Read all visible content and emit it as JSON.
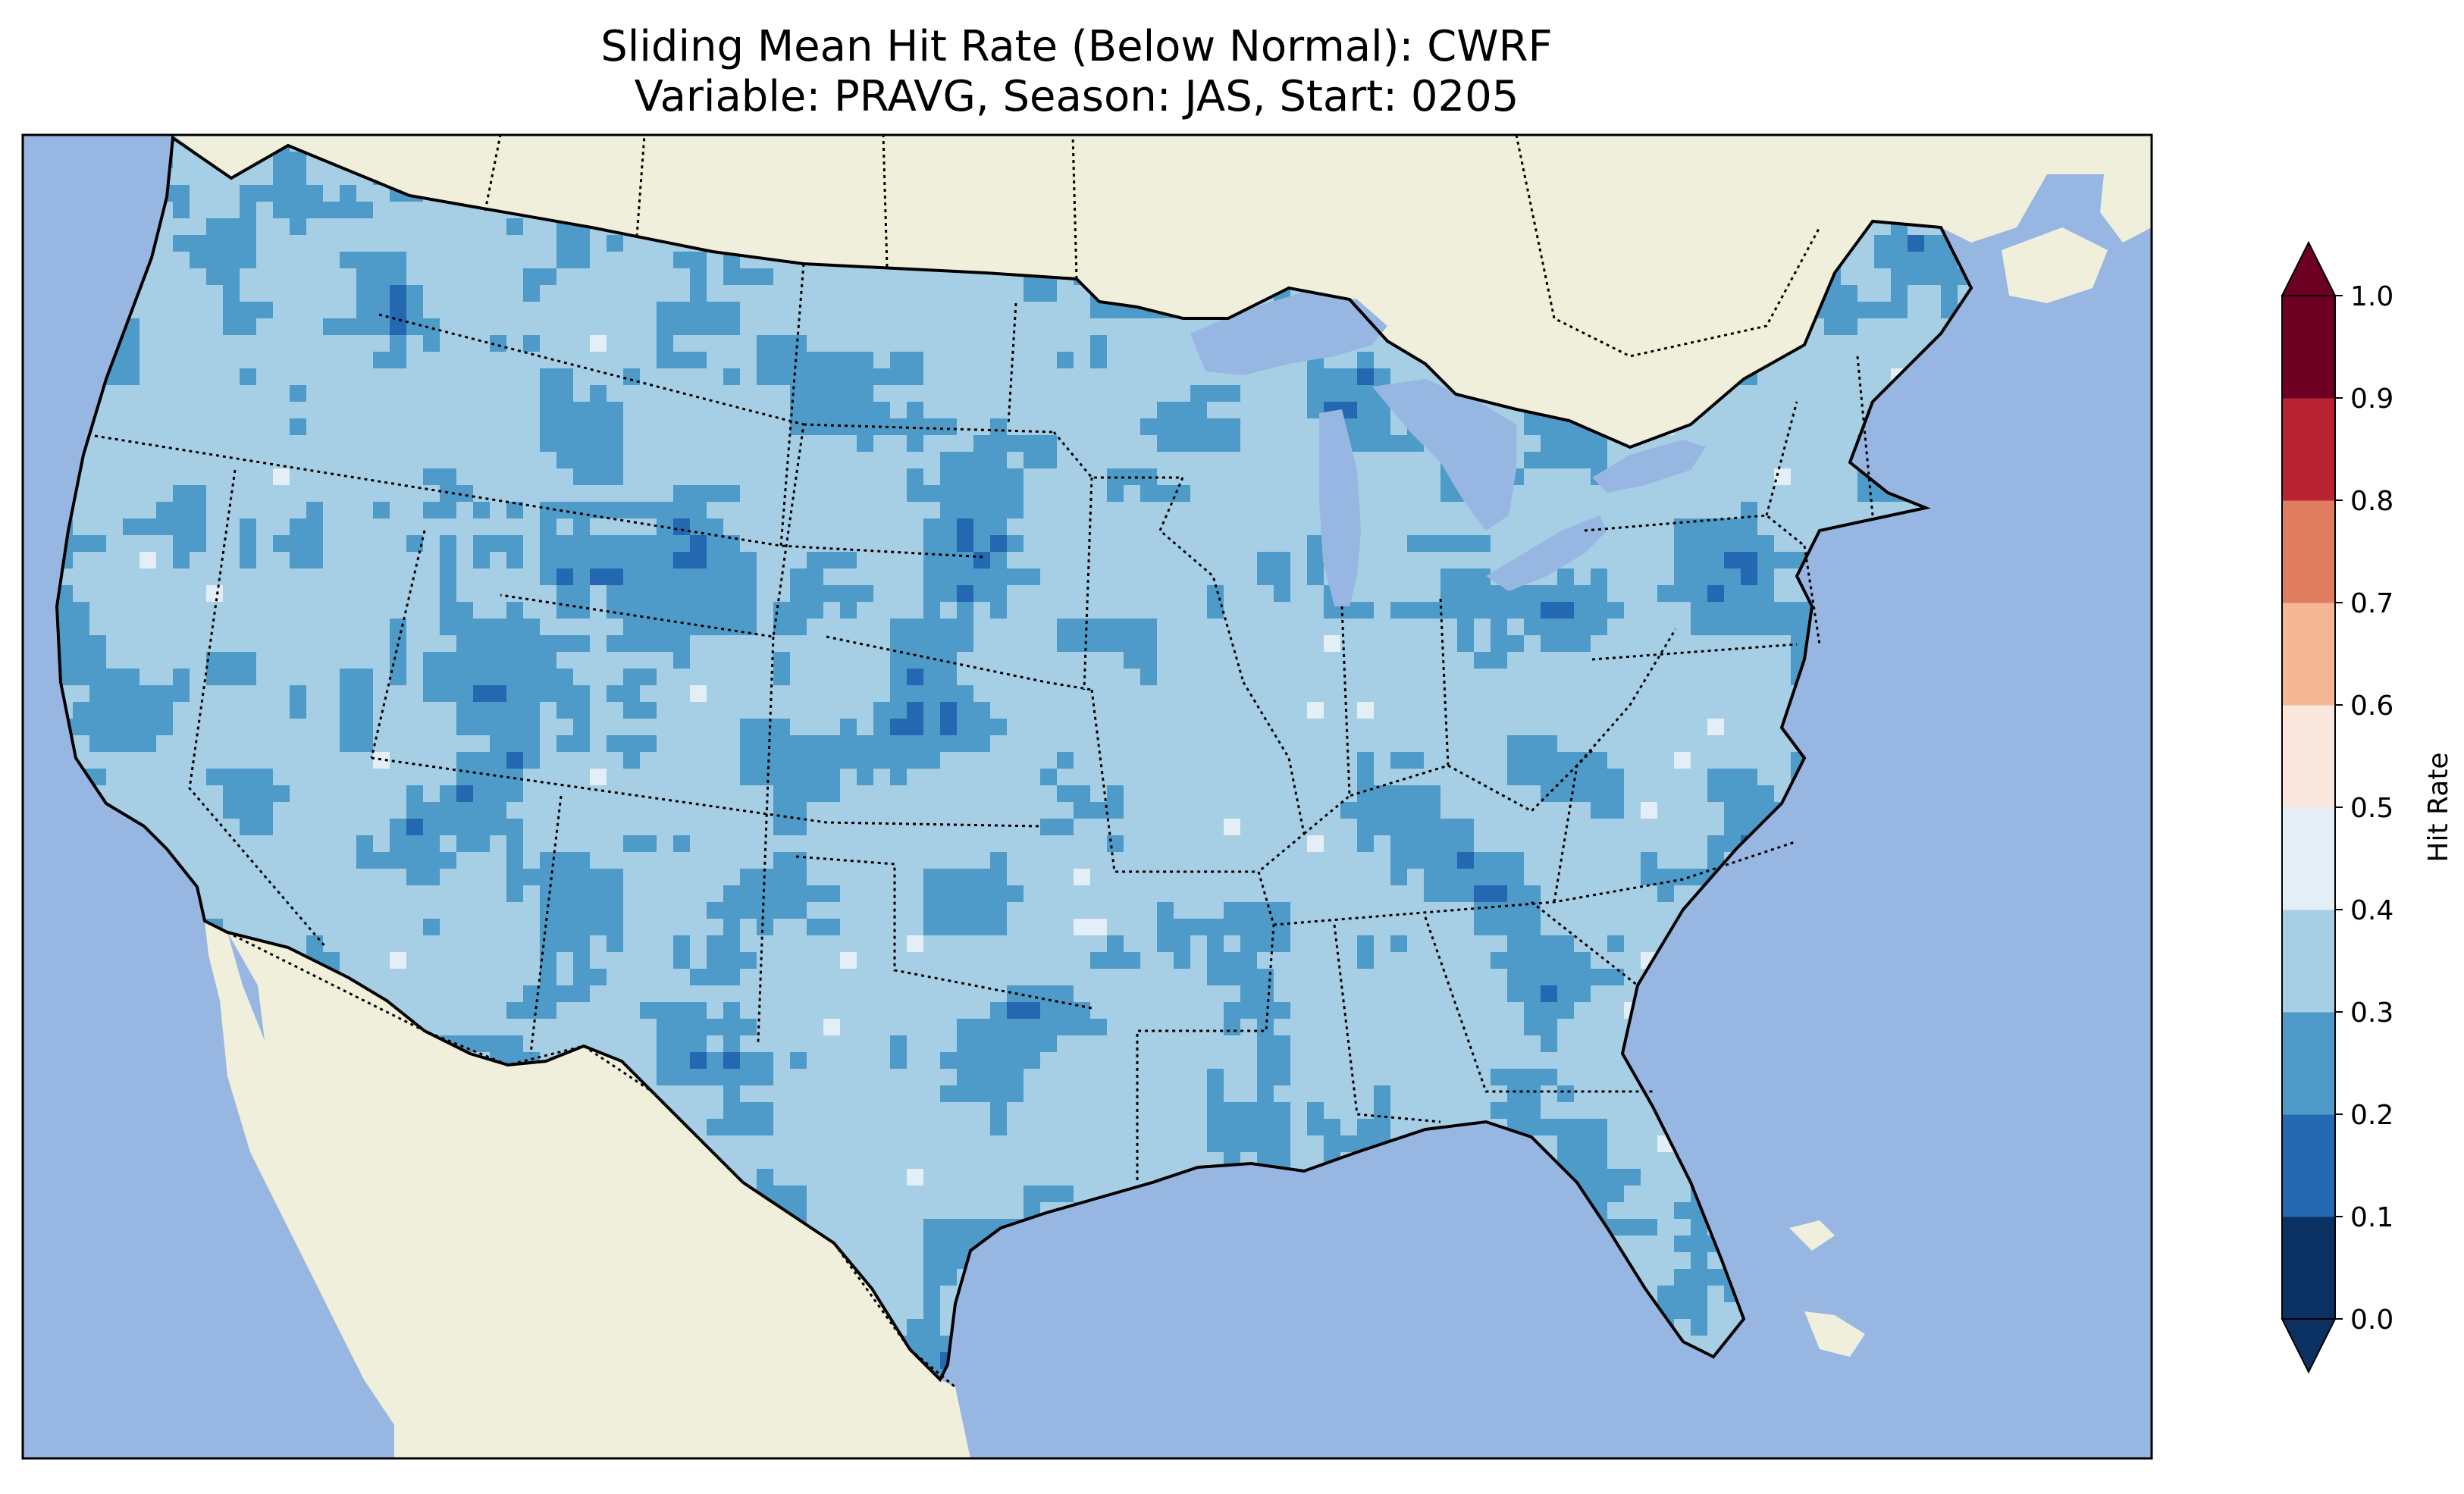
{
  "title": {
    "line1": "Sliding Mean Hit Rate (Below Normal): CWRF",
    "line2": "Variable: PRAVG, Season: JAS, Start: 0205"
  },
  "colors": {
    "ocean": "#97b6e1",
    "land": "#efefdb",
    "lakes": "#97b6e1"
  },
  "colorbar": {
    "label": "Hit Rate",
    "ticks": [
      "0.0",
      "0.1",
      "0.2",
      "0.3",
      "0.4",
      "0.5",
      "0.6",
      "0.7",
      "0.8",
      "0.9",
      "1.0"
    ],
    "levels": [
      0.0,
      0.1,
      0.2,
      0.3,
      0.4,
      0.5,
      0.6,
      0.7,
      0.8,
      0.9,
      1.0
    ],
    "colors": [
      "#053061",
      "#2166ac",
      "#4393c3",
      "#92c5de",
      "#d1e5f0",
      "#f7f7f7",
      "#fddbc7",
      "#f4a582",
      "#d6604d",
      "#b2182b",
      "#67001f"
    ],
    "band_colors": [
      "#0a3162",
      "#2368b0",
      "#4e9ac8",
      "#a6cee4",
      "#e3eef6",
      "#f9e6dc",
      "#f6b797",
      "#e07c5f",
      "#ba2331",
      "#6d0022"
    ],
    "extend": "both",
    "under_color": "#0a3162",
    "over_color": "#6d0022"
  },
  "map": {
    "projection": "lambert-conformal",
    "region": "contiguous-united-states",
    "field_classes": {
      "dominant": 0.35,
      "secondary": 0.25,
      "minor_dark": 0.15,
      "minor_light": 0.45
    }
  }
}
